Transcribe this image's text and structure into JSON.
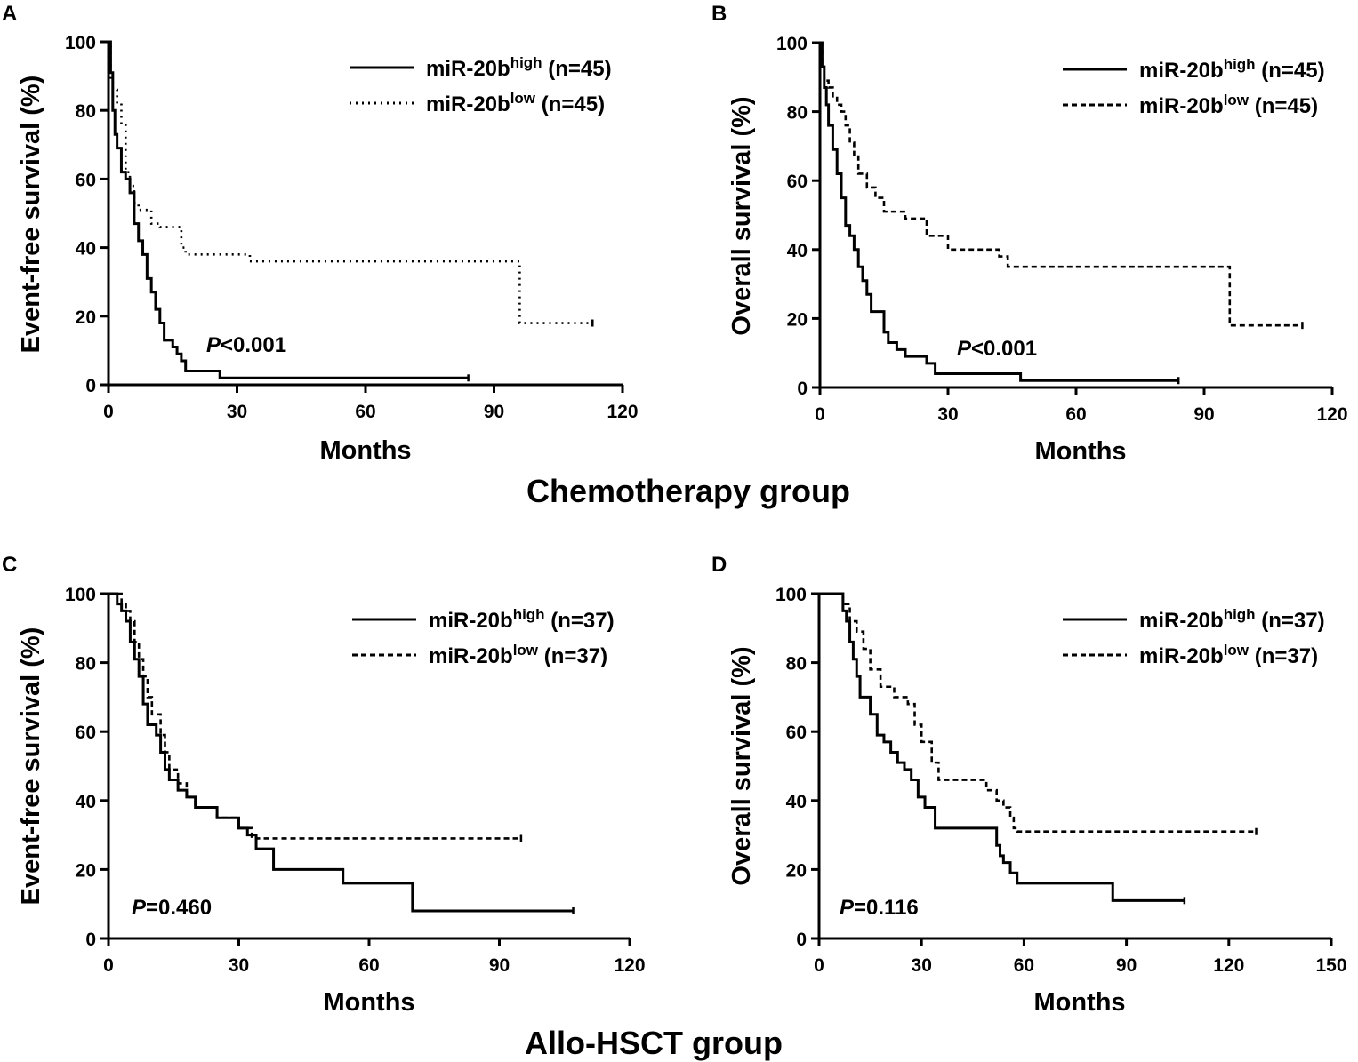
{
  "group_titles": [
    "Chemotherapy group",
    "Allo-HSCT group"
  ],
  "colors": {
    "line": "#000000",
    "background": "#ffffff"
  },
  "chart_data": [
    {
      "panel": "A",
      "type": "line",
      "subtype": "kaplan-meier",
      "group": "Chemotherapy group",
      "xlabel": "Months",
      "ylabel": "Event-free survival (%)",
      "xlim": [
        0,
        120
      ],
      "ylim": [
        0,
        100
      ],
      "xticks": [
        "0",
        "30",
        "60",
        "90",
        "120"
      ],
      "yticks": [
        "0",
        "20",
        "40",
        "60",
        "80",
        "100"
      ],
      "xtick_values": [
        0,
        30,
        60,
        90,
        120
      ],
      "ytick_values": [
        0,
        20,
        40,
        60,
        80,
        100
      ],
      "pvalue": {
        "label": "P",
        "text": "<0.001"
      },
      "legend_position": "top-right",
      "series": [
        {
          "name": "miR-20b",
          "sup": "high",
          "count": "(n=45)",
          "style": "solid",
          "x": [
            0,
            0.5,
            1,
            1.5,
            2,
            3,
            4,
            5,
            6,
            7,
            8,
            9,
            10,
            11,
            12,
            13,
            15,
            16,
            17,
            18,
            22,
            26,
            84
          ],
          "y": [
            100,
            91,
            80,
            73,
            69,
            62,
            60,
            56,
            47,
            42,
            38,
            31,
            27,
            22,
            18,
            13,
            11,
            9,
            7,
            4,
            4,
            2,
            2
          ]
        },
        {
          "name": "miR-20b",
          "sup": "low",
          "count": "(n=45)",
          "style": "dotted",
          "x": [
            0,
            0.5,
            1,
            2,
            3,
            4,
            5,
            6,
            7,
            10,
            12,
            17,
            18,
            32,
            33,
            96,
            113
          ],
          "y": [
            100,
            89,
            86,
            82,
            76,
            62,
            58,
            53,
            51,
            47,
            46,
            40,
            38,
            38,
            36,
            18,
            18
          ]
        }
      ]
    },
    {
      "panel": "B",
      "type": "line",
      "subtype": "kaplan-meier",
      "group": "Chemotherapy group",
      "xlabel": "Months",
      "ylabel": "Overall survival (%)",
      "xlim": [
        0,
        120
      ],
      "ylim": [
        0,
        100
      ],
      "xticks": [
        "0",
        "30",
        "60",
        "90",
        "120"
      ],
      "yticks": [
        "0",
        "20",
        "40",
        "60",
        "80",
        "100"
      ],
      "xtick_values": [
        0,
        30,
        60,
        90,
        120
      ],
      "ytick_values": [
        0,
        20,
        40,
        60,
        80,
        100
      ],
      "pvalue": {
        "label": "P",
        "text": "<0.001"
      },
      "legend_position": "top-right",
      "series": [
        {
          "name": "miR-20b",
          "sup": "high",
          "count": "(n=45)",
          "style": "solid",
          "x": [
            0,
            0.5,
            1,
            1.5,
            2,
            3,
            4,
            5,
            6,
            7,
            8,
            9,
            10,
            11,
            12,
            15,
            16,
            18,
            20,
            25,
            27,
            47,
            84
          ],
          "y": [
            100,
            93,
            87,
            82,
            76,
            69,
            62,
            55,
            47,
            44,
            40,
            35,
            31,
            27,
            22,
            16,
            13,
            11,
            9,
            7,
            4,
            2,
            2
          ]
        },
        {
          "name": "miR-20b",
          "sup": "low",
          "count": "(n=45)",
          "style": "dashed",
          "x": [
            0,
            0.5,
            1,
            2,
            3,
            4,
            5,
            6,
            7,
            8,
            9,
            11,
            13,
            15,
            20,
            25,
            30,
            42,
            44,
            96,
            113
          ],
          "y": [
            100,
            93,
            89,
            87,
            84,
            82,
            80,
            76,
            71,
            67,
            62,
            58,
            55,
            51,
            49,
            44,
            40,
            38,
            35,
            18,
            18
          ]
        }
      ]
    },
    {
      "panel": "C",
      "type": "line",
      "subtype": "kaplan-meier",
      "group": "Allo-HSCT group",
      "xlabel": "Months",
      "ylabel": "Event-free survival (%)",
      "xlim": [
        0,
        120
      ],
      "ylim": [
        0,
        100
      ],
      "xticks": [
        "0",
        "30",
        "60",
        "90",
        "120"
      ],
      "yticks": [
        "0",
        "20",
        "40",
        "60",
        "80",
        "100"
      ],
      "xtick_values": [
        0,
        30,
        60,
        90,
        120
      ],
      "ytick_values": [
        0,
        20,
        40,
        60,
        80,
        100
      ],
      "pvalue": {
        "label": "P",
        "text": "=0.460"
      },
      "legend_position": "top-right",
      "series": [
        {
          "name": "miR-20b",
          "sup": "high",
          "count": "(n=37)",
          "style": "solid",
          "x": [
            0,
            2,
            3,
            4,
            5,
            6,
            7,
            8,
            9,
            11,
            12,
            13,
            14,
            16,
            18,
            20,
            22,
            25,
            30,
            32,
            34,
            38,
            54,
            55,
            70,
            107
          ],
          "y": [
            100,
            97,
            95,
            92,
            86,
            81,
            76,
            68,
            62,
            59,
            54,
            49,
            46,
            43,
            41,
            38,
            38,
            35,
            32,
            30,
            26,
            20,
            16,
            16,
            8,
            8
          ]
        },
        {
          "name": "miR-20b",
          "sup": "low",
          "count": "(n=37)",
          "style": "dashed",
          "x": [
            0,
            3,
            4,
            5,
            6,
            7,
            8,
            9,
            10,
            12,
            13,
            14,
            16,
            18,
            20,
            25,
            30,
            33,
            34,
            95
          ],
          "y": [
            100,
            97,
            95,
            92,
            86,
            81,
            76,
            70,
            65,
            59,
            54,
            49,
            45,
            41,
            38,
            35,
            32,
            29,
            29,
            29
          ]
        }
      ]
    },
    {
      "panel": "D",
      "type": "line",
      "subtype": "kaplan-meier",
      "group": "Allo-HSCT group",
      "xlabel": "Months",
      "ylabel": "Overall survival (%)",
      "xlim": [
        0,
        150
      ],
      "ylim": [
        0,
        100
      ],
      "xticks": [
        "0",
        "30",
        "60",
        "90",
        "120",
        "150"
      ],
      "yticks": [
        "0",
        "20",
        "40",
        "60",
        "80",
        "100"
      ],
      "xtick_values": [
        0,
        30,
        60,
        90,
        120,
        150
      ],
      "ytick_values": [
        0,
        20,
        40,
        60,
        80,
        100
      ],
      "pvalue": {
        "label": "P",
        "text": "=0.116"
      },
      "legend_position": "top-right",
      "series": [
        {
          "name": "miR-20b",
          "sup": "high",
          "count": "(n=37)",
          "style": "solid",
          "x": [
            0,
            6,
            7,
            8,
            9,
            10,
            11,
            12,
            15,
            17,
            19,
            21,
            23,
            25,
            27,
            29,
            31,
            34,
            49,
            52,
            53,
            54,
            56,
            58,
            86,
            107
          ],
          "y": [
            100,
            100,
            95,
            92,
            86,
            81,
            76,
            70,
            65,
            59,
            57,
            54,
            51,
            49,
            46,
            41,
            38,
            32,
            32,
            27,
            24,
            22,
            19,
            16,
            11,
            11
          ]
        },
        {
          "name": "miR-20b",
          "sup": "low",
          "count": "(n=37)",
          "style": "dashed",
          "x": [
            0,
            6,
            7,
            9,
            11,
            13,
            15,
            18,
            22,
            26,
            28,
            30,
            33,
            35,
            45,
            49,
            52,
            54,
            56,
            57,
            58,
            128
          ],
          "y": [
            100,
            100,
            97,
            92,
            89,
            84,
            78,
            73,
            70,
            68,
            62,
            57,
            51,
            46,
            46,
            43,
            40,
            38,
            35,
            32,
            31,
            31
          ]
        }
      ]
    }
  ]
}
